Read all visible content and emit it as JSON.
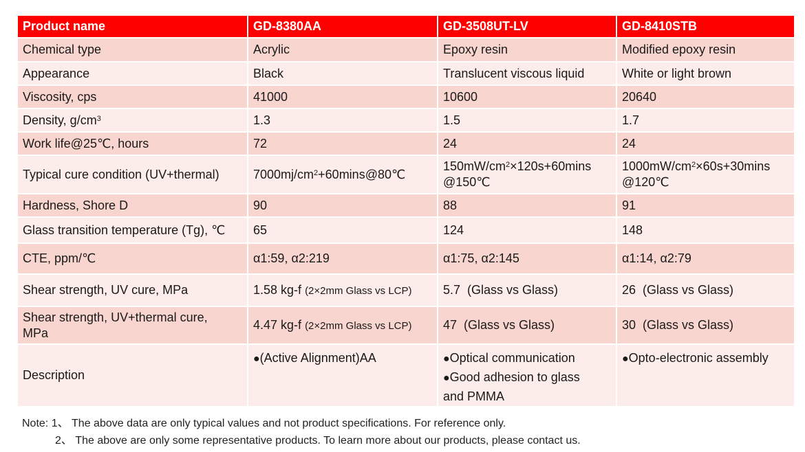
{
  "table": {
    "headers": [
      "Product name",
      "GD-8380AA",
      "GD-3508UT-LV",
      "GD-8410STB"
    ],
    "rows": {
      "chemical_type": {
        "label": "Chemical type",
        "v1": "Acrylic",
        "v2": "Epoxy resin",
        "v3": "Modified epoxy resin"
      },
      "appearance": {
        "label": "Appearance",
        "v1": "Black",
        "v2": "Translucent viscous liquid",
        "v3": "White or light brown"
      },
      "viscosity": {
        "label": "Viscosity, cps",
        "v1": "41000",
        "v2": "10600",
        "v3": "20640"
      },
      "density": {
        "label": "Density, g/cm",
        "label_sup": "3",
        "v1": "1.3",
        "v2": "1.5",
        "v3": "1.7"
      },
      "work_life": {
        "label": "Work life@25℃, hours",
        "v1": "72",
        "v2": "24",
        "v3": "24"
      },
      "cure": {
        "label": "Typical cure condition (UV+thermal)",
        "v1_pre": "7000mj/cm",
        "v1_sup": "2",
        "v1_post": "+60mins@80℃",
        "v2_pre": "150mW/cm",
        "v2_sup": "2",
        "v2_post": "×120s+60mins",
        "v2_line2": "@150℃",
        "v3_pre": "1000mW/cm",
        "v3_sup": "2",
        "v3_post": "×60s+30mins",
        "v3_line2": "@120℃"
      },
      "hardness": {
        "label": "Hardness, Shore D",
        "v1": "90",
        "v2": "88",
        "v3": "91"
      },
      "tg": {
        "label": "Glass transition temperature (Tg), ℃",
        "v1": "65",
        "v2": "124",
        "v3": "148"
      },
      "cte": {
        "label": "CTE, ppm/℃",
        "v1": "α1:59, α2:219",
        "v2": "α1:75, α2:145",
        "v3": "α1:14, α2:79"
      },
      "shear_uv": {
        "label": "Shear strength, UV cure, MPa",
        "v1_main": "1.58 kg-f",
        "v1_small": "(2×2mm Glass vs LCP)",
        "v2": "5.7  (Glass vs Glass)",
        "v3": "26  (Glass vs Glass)"
      },
      "shear_uv_thermal": {
        "label_line1": "Shear strength, UV+thermal cure,",
        "label_line2": "MPa",
        "v1_main": "4.47 kg-f",
        "v1_small": "(2×2mm Glass vs LCP)",
        "v2": "47  (Glass vs Glass)",
        "v3": "30  (Glass vs Glass)"
      },
      "description": {
        "label": "Description",
        "bullet": "●",
        "v1": [
          "(Active Alignment)AA"
        ],
        "v2": [
          "Optical communication",
          "Good adhesion to glass"
        ],
        "v2_cont": "and PMMA",
        "v3": [
          "Opto-electronic assembly"
        ]
      }
    }
  },
  "notes": {
    "line1": "Note: 1、 The above data are only typical values and not product specifications. For reference only.",
    "line2": "2、 The above are only some representative products. To learn more about our products, please contact us."
  },
  "colors": {
    "header": "#ff0000",
    "row_dark": "#f8d6cf",
    "row_light": "#fcecea"
  }
}
